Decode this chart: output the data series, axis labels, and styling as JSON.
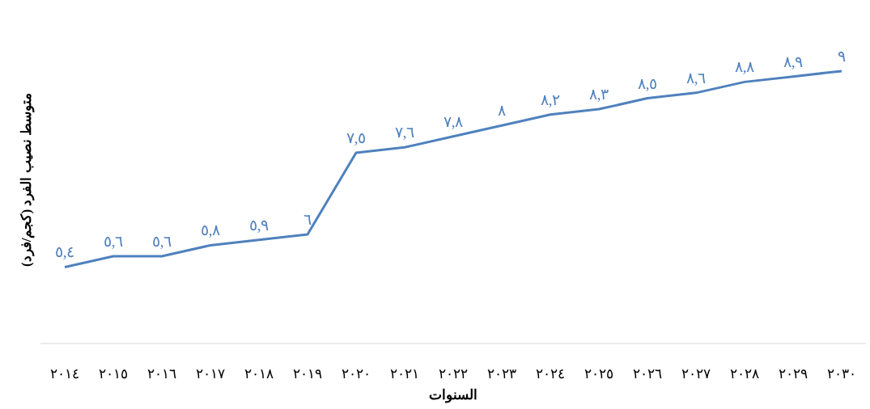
{
  "chart_data": {
    "type": "line",
    "xlabel": "السنوات",
    "ylabel": "متوسط نصيب الفرد (كجم/فرد)",
    "categories": [
      "٢٠١٤",
      "٢٠١٥",
      "٢٠١٦",
      "٢٠١٧",
      "٢٠١٨",
      "٢٠١٩",
      "٢٠٢٠",
      "٢٠٢١",
      "٢٠٢٢",
      "٢٠٢٣",
      "٢٠٢٤",
      "٢٠٢٥",
      "٢٠٢٦",
      "٢٠٢٧",
      "٢٠٢٨",
      "٢٠٢٩",
      "٢٠٣٠"
    ],
    "tick_labels": "x",
    "grid": false,
    "line_style": "solid",
    "series": [
      {
        "color": "#4f81bd",
        "values": [
          5.4,
          5.6,
          5.6,
          5.8,
          5.9,
          6,
          7.5,
          7.6,
          7.8,
          8,
          8.2,
          8.3,
          8.5,
          8.6,
          8.8,
          8.9,
          9
        ],
        "value_labels": [
          "٥,٤",
          "٥,٦",
          "٥,٦",
          "٥,٨",
          "٥,٩",
          "٦",
          "٧,٥",
          "٧,٦",
          "٧,٨",
          "٨",
          "٨,٢",
          "٨,٣",
          "٨,٥",
          "٨,٦",
          "٨,٨",
          "٨,٩",
          "٩"
        ]
      }
    ]
  }
}
